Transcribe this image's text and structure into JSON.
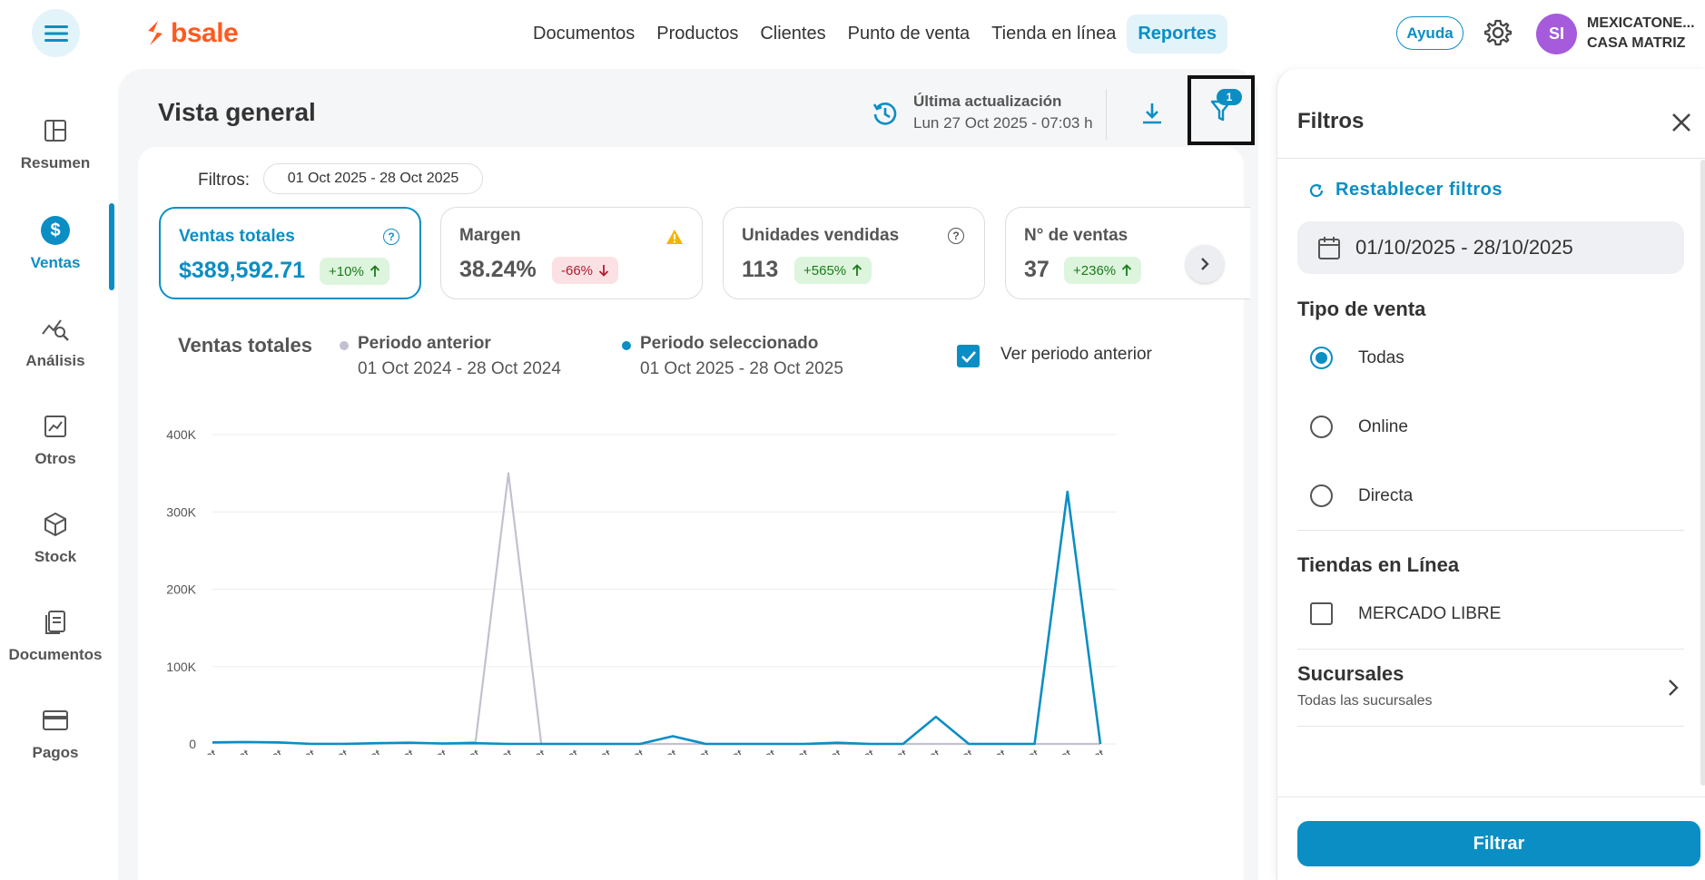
{
  "brand": {
    "name": "bsale",
    "color": "#ff5a1f"
  },
  "accent": "#0a8ec4",
  "nav": {
    "items": [
      "Documentos",
      "Productos",
      "Clientes",
      "Punto de venta",
      "Tienda en línea",
      "Reportes"
    ],
    "active": "Reportes"
  },
  "header": {
    "help_label": "Ayuda",
    "avatar_initials": "SI",
    "user_line1": "MEXICATONE...",
    "user_line2": "CASA MATRIZ"
  },
  "sidebar": {
    "items": [
      {
        "label": "Resumen",
        "icon": "layout-icon"
      },
      {
        "label": "Ventas",
        "icon": "dollar-icon"
      },
      {
        "label": "Análisis",
        "icon": "analysis-icon"
      },
      {
        "label": "Otros",
        "icon": "trend-chart-icon"
      },
      {
        "label": "Stock",
        "icon": "box-icon"
      },
      {
        "label": "Documentos",
        "icon": "documents-icon"
      },
      {
        "label": "Pagos",
        "icon": "card-icon"
      }
    ],
    "active": "Ventas"
  },
  "page": {
    "title": "Vista general",
    "update_label": "Última actualización",
    "update_date": "Lun 27 Oct 2025 - 07:03 h",
    "filter_badge": "1",
    "filters_label": "Filtros:",
    "date_range_chip": "01 Oct 2025 - 28 Oct 2025"
  },
  "kpis": [
    {
      "title": "Ventas totales",
      "value": "$389,592.71",
      "change": "+10%",
      "direction": "up"
    },
    {
      "title": "Margen",
      "value": "38.24%",
      "change": "-66%",
      "direction": "down"
    },
    {
      "title": "Unidades vendidas",
      "value": "113",
      "change": "+565%",
      "direction": "up"
    },
    {
      "title": "N° de ventas",
      "value": "37",
      "change": "+236%",
      "direction": "up"
    }
  ],
  "chart_legend": {
    "title": "Ventas totales",
    "previous_name": "Periodo anterior",
    "previous_range": "01 Oct 2024 - 28 Oct 2024",
    "selected_name": "Periodo seleccionado",
    "selected_range": "01 Oct 2025 - 28 Oct 2025",
    "compare_label": "Ver periodo anterior",
    "compare_checked": true
  },
  "chart_data": {
    "type": "line",
    "title": "Ventas totales",
    "x": [
      "01 Oct",
      "02 Oct",
      "03 Oct",
      "04 Oct",
      "05 Oct",
      "06 Oct",
      "07 Oct",
      "08 Oct",
      "09 Oct",
      "10 Oct",
      "11 Oct",
      "12 Oct",
      "13 Oct",
      "14 Oct",
      "15 Oct",
      "16 Oct",
      "17 Oct",
      "18 Oct",
      "19 Oct",
      "20 Oct",
      "21 Oct",
      "22 Oct",
      "23 Oct",
      "24 Oct",
      "25 Oct",
      "26 Oct",
      "27 Oct",
      "28 Oct"
    ],
    "yticks": [
      "0",
      "100K",
      "200K",
      "300K",
      "400K"
    ],
    "ylim": [
      0,
      400000
    ],
    "series": [
      {
        "name": "Periodo anterior",
        "color": "#c4c0cf",
        "values": [
          1500,
          2000,
          1500,
          500,
          500,
          500,
          1000,
          500,
          2500,
          350000,
          0,
          0,
          0,
          0,
          0,
          0,
          0,
          0,
          0,
          0,
          0,
          0,
          0,
          0,
          0,
          0,
          0,
          0
        ]
      },
      {
        "name": "Periodo seleccionado",
        "color": "#0a8ec4",
        "values": [
          2000,
          2500,
          2000,
          0,
          0,
          1000,
          1500,
          500,
          1000,
          0,
          0,
          0,
          0,
          0,
          10000,
          0,
          0,
          0,
          0,
          1500,
          0,
          0,
          35000,
          0,
          0,
          0,
          326000,
          0
        ]
      }
    ]
  },
  "drawer": {
    "title": "Filtros",
    "reset_label": "Restablecer filtros",
    "date_value": "01/10/2025 - 28/10/2025",
    "sale_type_title": "Tipo de venta",
    "sale_types": [
      "Todas",
      "Online",
      "Directa"
    ],
    "sale_type_selected": "Todas",
    "online_stores_title": "Tiendas en Línea",
    "online_store": "MERCADO LIBRE",
    "branches_title": "Sucursales",
    "branches_sub": "Todas las sucursales",
    "submit_label": "Filtrar"
  }
}
